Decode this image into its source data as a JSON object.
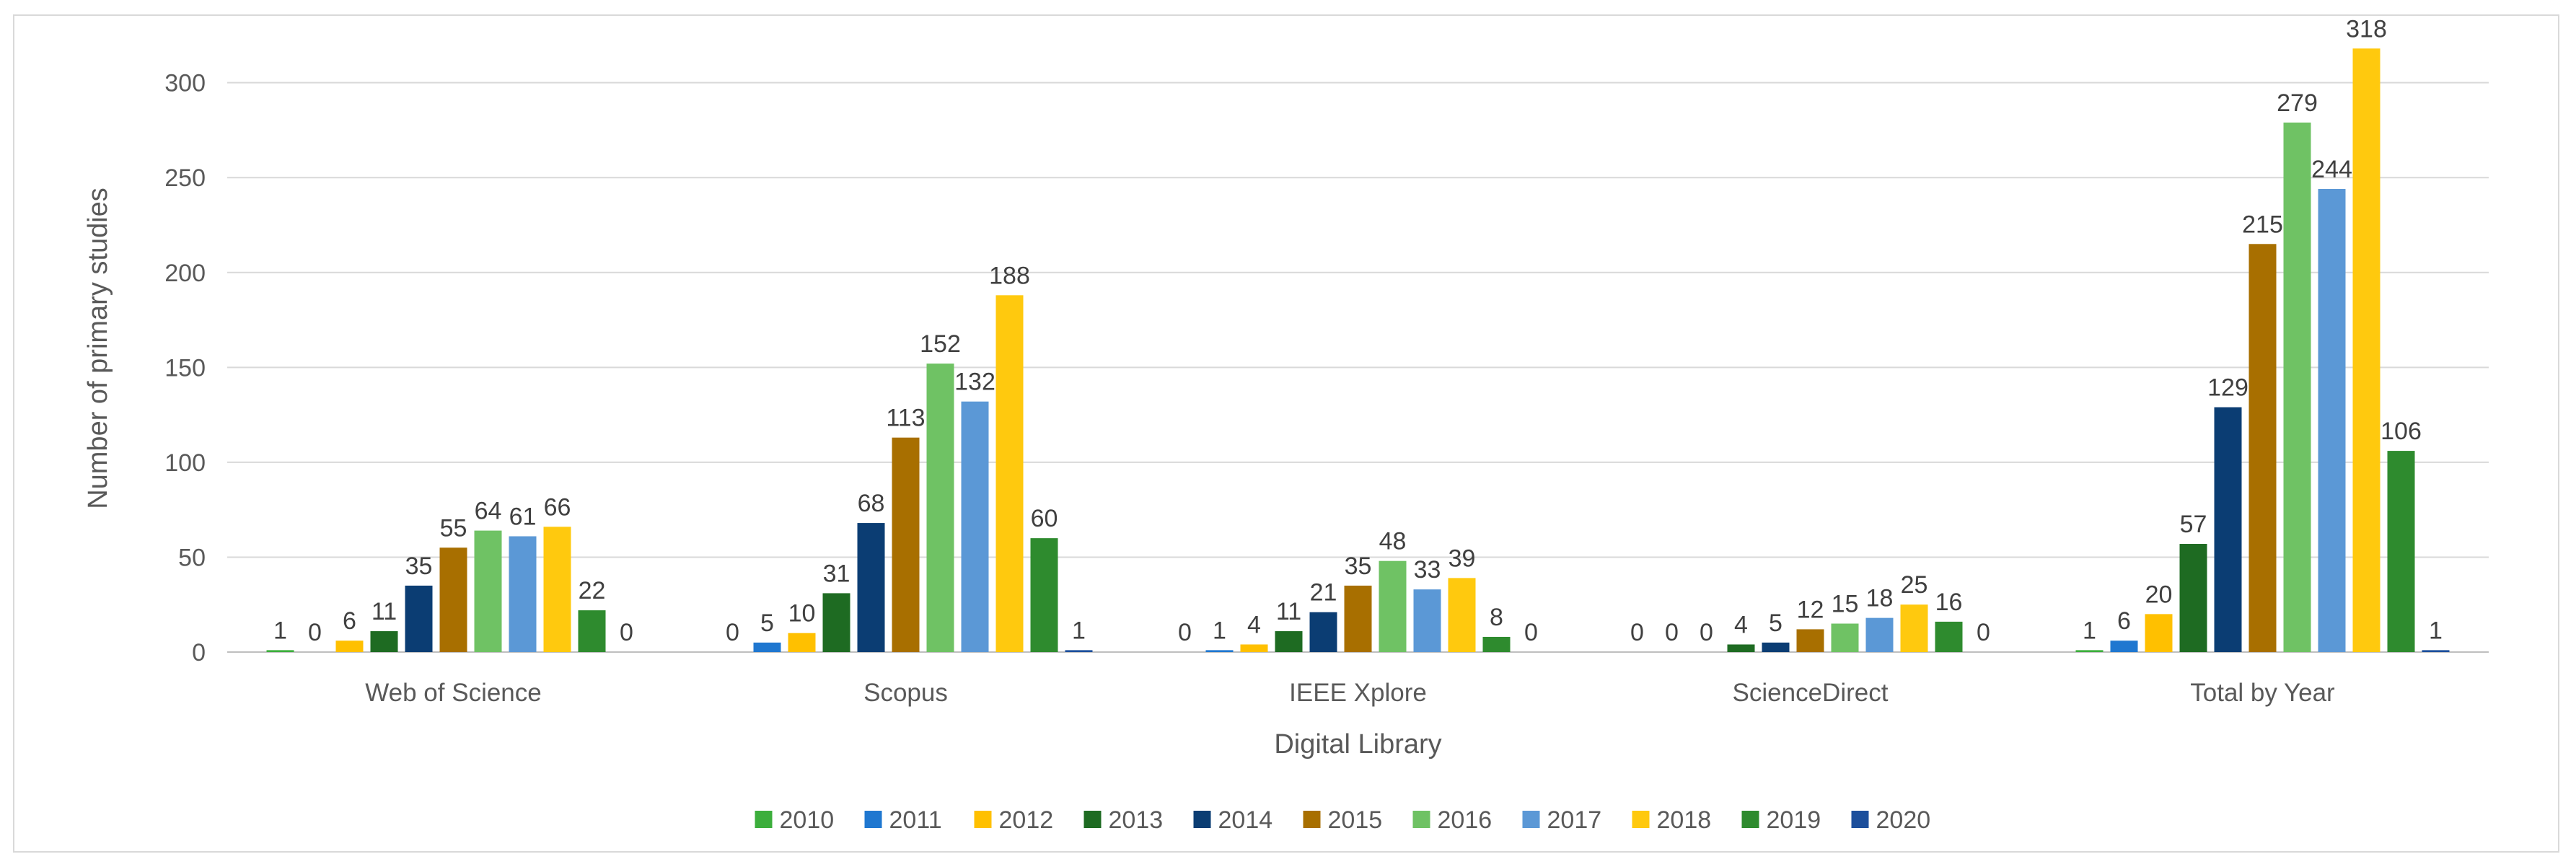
{
  "chart_data": {
    "type": "bar",
    "title": "",
    "xlabel": "Digital Library",
    "ylabel": "Number of primary studies",
    "ylim": [
      0,
      320
    ],
    "yticks": [
      0,
      50,
      100,
      150,
      200,
      250,
      300
    ],
    "grid": true,
    "legend_position": "bottom",
    "categories": [
      "Web of Science",
      "Scopus",
      "IEEE Xplore",
      "ScienceDirect",
      "Total by Year"
    ],
    "series": [
      {
        "name": "2010",
        "color": "#3cae3c",
        "values": [
          1,
          0,
          0,
          0,
          1
        ]
      },
      {
        "name": "2011",
        "color": "#1f77d0",
        "values": [
          0,
          5,
          1,
          0,
          6
        ]
      },
      {
        "name": "2012",
        "color": "#ffc000",
        "values": [
          6,
          10,
          4,
          0,
          20
        ]
      },
      {
        "name": "2013",
        "color": "#1e6b22",
        "values": [
          11,
          31,
          11,
          4,
          57
        ]
      },
      {
        "name": "2014",
        "color": "#0b3d73",
        "values": [
          35,
          68,
          21,
          5,
          129
        ]
      },
      {
        "name": "2015",
        "color": "#a86f00",
        "values": [
          55,
          113,
          35,
          12,
          215
        ]
      },
      {
        "name": "2016",
        "color": "#6fc264",
        "values": [
          64,
          152,
          48,
          15,
          279
        ]
      },
      {
        "name": "2017",
        "color": "#5b98d6",
        "values": [
          61,
          132,
          33,
          18,
          244
        ]
      },
      {
        "name": "2018",
        "color": "#ffc90e",
        "values": [
          66,
          188,
          39,
          25,
          318
        ]
      },
      {
        "name": "2019",
        "color": "#2e8b2e",
        "values": [
          22,
          60,
          8,
          16,
          106
        ]
      },
      {
        "name": "2020",
        "color": "#1c4f9c",
        "values": [
          0,
          1,
          0,
          0,
          1
        ]
      }
    ]
  }
}
